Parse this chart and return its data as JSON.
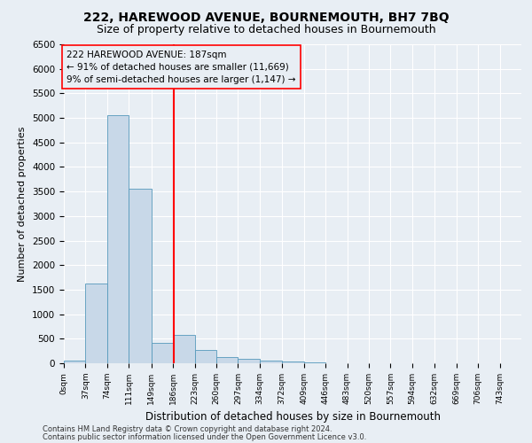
{
  "title1": "222, HAREWOOD AVENUE, BOURNEMOUTH, BH7 7BQ",
  "title2": "Size of property relative to detached houses in Bournemouth",
  "xlabel": "Distribution of detached houses by size in Bournemouth",
  "ylabel": "Number of detached properties",
  "footnote1": "Contains HM Land Registry data © Crown copyright and database right 2024.",
  "footnote2": "Contains public sector information licensed under the Open Government Licence v3.0.",
  "annotation_line1": "222 HAREWOOD AVENUE: 187sqm",
  "annotation_line2": "← 91% of detached houses are smaller (11,669)",
  "annotation_line3": "9% of semi-detached houses are larger (1,147) →",
  "bar_color": "#c8d8e8",
  "bar_edge_color": "#5599bb",
  "red_line_x": 187,
  "categories": [
    "0sqm",
    "37sqm",
    "74sqm",
    "111sqm",
    "149sqm",
    "186sqm",
    "223sqm",
    "260sqm",
    "297sqm",
    "334sqm",
    "372sqm",
    "409sqm",
    "446sqm",
    "483sqm",
    "520sqm",
    "557sqm",
    "594sqm",
    "632sqm",
    "669sqm",
    "706sqm",
    "743sqm"
  ],
  "bin_edges": [
    0,
    37,
    74,
    111,
    149,
    186,
    223,
    260,
    297,
    334,
    372,
    409,
    446,
    483,
    520,
    557,
    594,
    632,
    669,
    706,
    743,
    780
  ],
  "values": [
    50,
    1620,
    5050,
    3550,
    420,
    580,
    270,
    120,
    90,
    60,
    30,
    15,
    5,
    2,
    1,
    0,
    0,
    0,
    0,
    0,
    0
  ],
  "ylim": [
    0,
    6500
  ],
  "yticks": [
    0,
    500,
    1000,
    1500,
    2000,
    2500,
    3000,
    3500,
    4000,
    4500,
    5000,
    5500,
    6000,
    6500
  ],
  "background_color": "#e8eef4",
  "grid_color": "#ffffff",
  "title1_fontsize": 10,
  "title2_fontsize": 9
}
